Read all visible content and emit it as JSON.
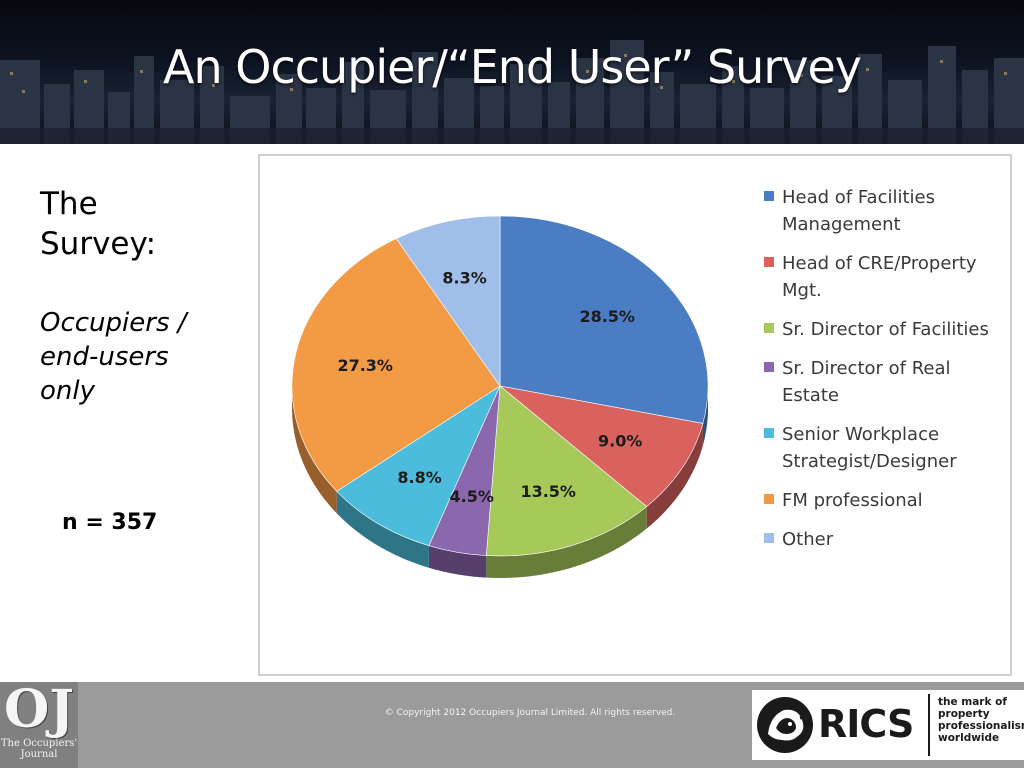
{
  "header": {
    "title": "An Occupier/“End User” Survey"
  },
  "left_panel": {
    "heading": "The Survey:",
    "subtitle": "Occupiers / end-users only",
    "sample_size": "n = 357"
  },
  "chart_data": {
    "type": "pie",
    "title": "",
    "categories": [
      "Head of Facilities Management",
      "Head of CRE/Property Mgt.",
      "Sr. Director of Facilities",
      "Sr. Director of Real Estate",
      "Senior Workplace Strategist/Designer",
      "FM professional",
      "Other"
    ],
    "values": [
      28.5,
      9.0,
      13.5,
      4.5,
      8.8,
      27.3,
      8.3
    ],
    "data_labels": [
      "28.5%",
      "9.0%",
      "13.5%",
      "4.5%",
      "8.8%",
      "27.3%",
      "8.3%"
    ],
    "colors": [
      "#4a7dc4",
      "#d9625f",
      "#a6c95a",
      "#8b67ad",
      "#4bbcdc",
      "#f39a45",
      "#9fbfea"
    ],
    "legend_placement": "right",
    "three_d": true
  },
  "footer": {
    "oj_logo_mark": "OJ",
    "oj_logo_name": "The Occupiers' Journal",
    "copyright": "© Copyright 2012 Occupiers Journal Limited. All rights reserved.",
    "rics_word": "RICS",
    "rics_tagline": "the mark of property professionalism worldwide",
    "icons": {
      "oj": "oj-logo",
      "rics": "lion-icon"
    }
  }
}
